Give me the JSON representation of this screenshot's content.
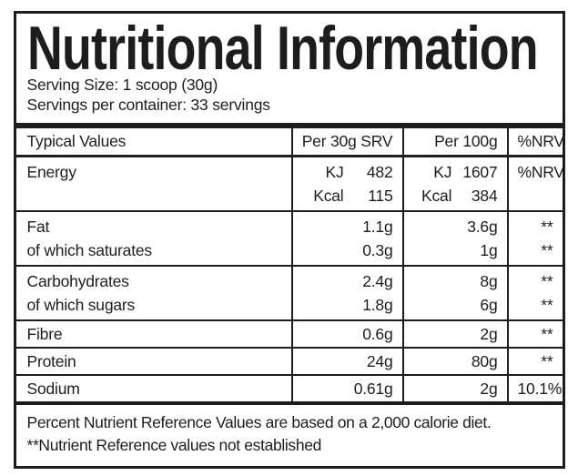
{
  "colors": {
    "ink": "#1d1d1d",
    "paper": "#ffffff"
  },
  "label": {
    "title": "Nutritional Information",
    "serving_size": "Serving Size: 1 scoop (30g)",
    "servings_per_container": "Servings per container: 33 servings"
  },
  "table": {
    "header": {
      "typical_values": "Typical Values",
      "per_srv": "Per 30g SRV",
      "per_100g": "Per 100g",
      "nrv": "%NRV"
    },
    "energy": {
      "label": "Energy",
      "srv": {
        "kj_unit": "KJ",
        "kj": "482",
        "kcal_unit": "Kcal",
        "kcal": "115"
      },
      "per_100g": {
        "kj_unit": "KJ",
        "kj": "1607",
        "kcal_unit": "Kcal",
        "kcal": "384"
      },
      "nrv": "%NRV"
    },
    "rows": [
      {
        "line1": {
          "label": "Fat",
          "srv": "1.1g",
          "per_100g": "3.6g",
          "nrv": "**"
        },
        "line2": {
          "label": "of which saturates",
          "srv": "0.3g",
          "per_100g": "1g",
          "nrv": "**"
        }
      },
      {
        "line1": {
          "label": "Carbohydrates",
          "srv": "2.4g",
          "per_100g": "8g",
          "nrv": "**"
        },
        "line2": {
          "label": "of which sugars",
          "srv": "1.8g",
          "per_100g": "6g",
          "nrv": "**"
        }
      },
      {
        "line1": {
          "label": "Fibre",
          "srv": "0.6g",
          "per_100g": "2g",
          "nrv": "**"
        }
      },
      {
        "line1": {
          "label": "Protein",
          "srv": "24g",
          "per_100g": "80g",
          "nrv": "**"
        }
      },
      {
        "line1": {
          "label": "Sodium",
          "srv": "0.61g",
          "per_100g": "2g",
          "nrv": "10.1%"
        }
      }
    ],
    "footnotes": [
      "Percent Nutrient Reference Values are based on a 2,000 calorie diet.",
      "**Nutrient Reference values not established"
    ]
  }
}
